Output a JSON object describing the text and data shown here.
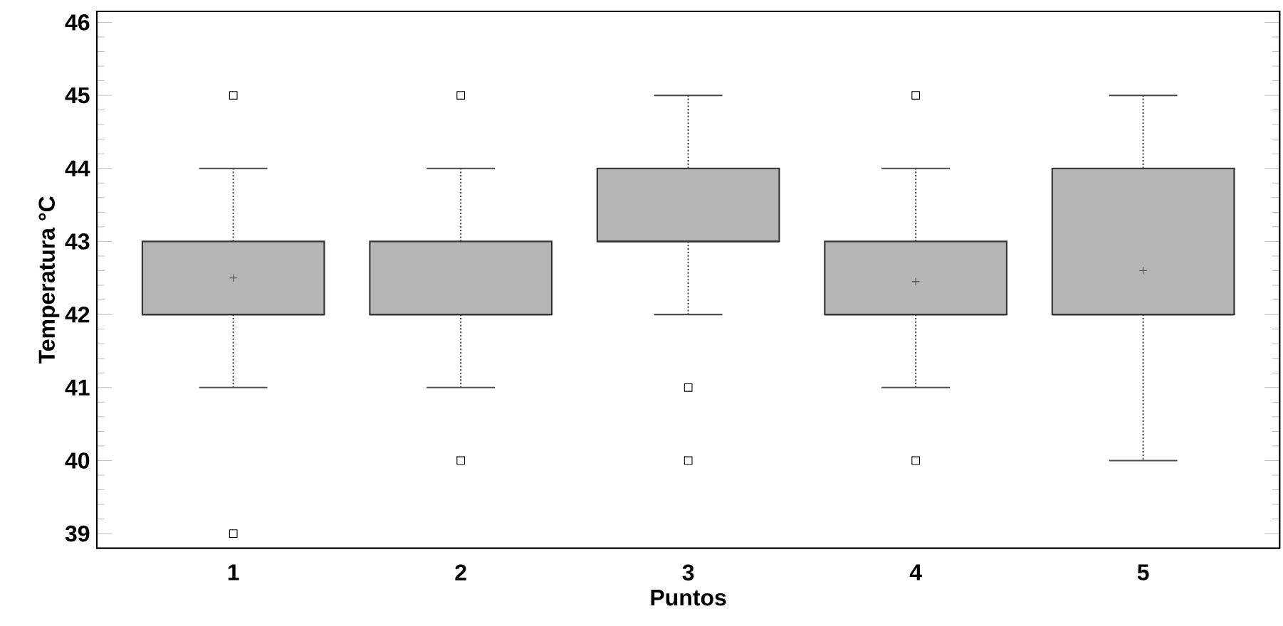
{
  "chart_data": {
    "type": "box",
    "xlabel": "Puntos",
    "ylabel": "Temperatura °C",
    "categories": [
      "1",
      "2",
      "3",
      "4",
      "5"
    ],
    "color": "#b5b5b5",
    "boxes": [
      {
        "low": 41,
        "q1": 42,
        "median": 42,
        "q3": 43,
        "high": 44,
        "mean": 42.5,
        "outliers": [
          45,
          39
        ]
      },
      {
        "low": 41,
        "q1": 42,
        "median": 42,
        "q3": 43,
        "high": 44,
        "outliers": [
          45,
          40
        ]
      },
      {
        "low": 42,
        "q1": 43,
        "median": 43,
        "q3": 44,
        "high": 45,
        "outliers": [
          41,
          40
        ]
      },
      {
        "low": 41,
        "q1": 42,
        "median": 42,
        "q3": 43,
        "high": 44,
        "mean": 42.45,
        "outliers": [
          45,
          40
        ]
      },
      {
        "low": 40,
        "q1": 42,
        "median": 42,
        "q3": 44,
        "high": 45,
        "mean": 42.6
      }
    ],
    "ylim": [
      38.8,
      46.15
    ],
    "yticks": [
      39,
      40,
      41,
      42,
      43,
      44,
      45,
      46
    ],
    "grid": false
  }
}
